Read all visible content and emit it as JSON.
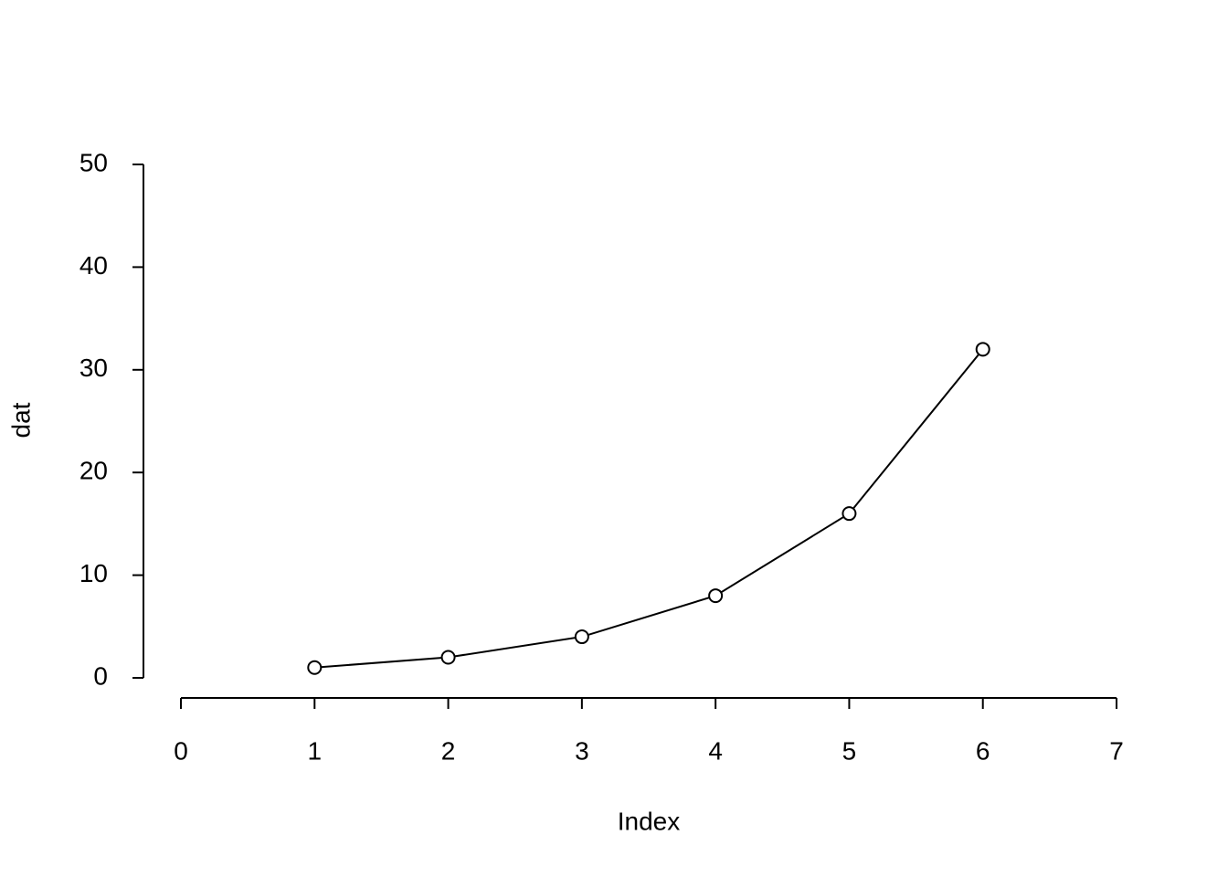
{
  "chart_data": {
    "type": "line",
    "xlabel": "Index",
    "ylabel": "dat",
    "x": [
      1,
      2,
      3,
      4,
      5,
      6
    ],
    "series": [
      {
        "color": "#000000",
        "values": [
          1,
          2,
          4,
          8,
          16,
          32
        ]
      }
    ],
    "marker": "circle",
    "xlim": [
      0,
      7
    ],
    "xticks": [
      0,
      1,
      2,
      3,
      4,
      5,
      6,
      7
    ],
    "ylim": [
      0,
      50
    ],
    "yticks": [
      0,
      10,
      20,
      30,
      40,
      50
    ]
  }
}
